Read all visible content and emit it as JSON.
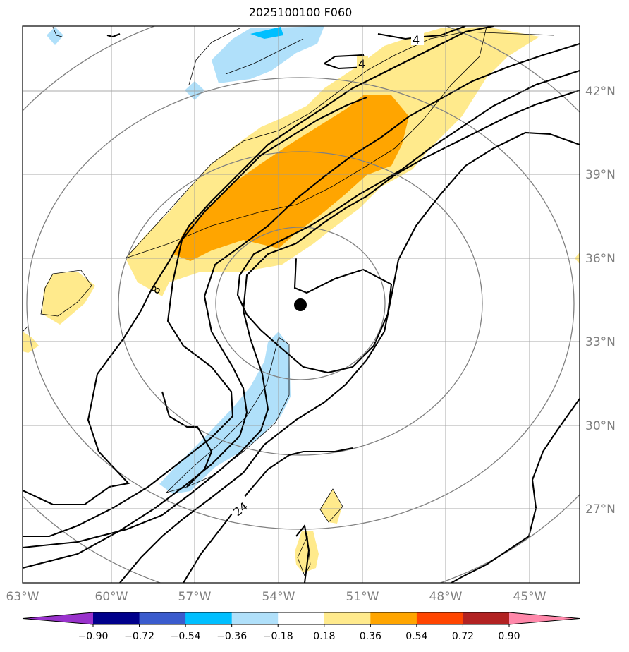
{
  "title": "2025100100 F060",
  "map": {
    "lon_ticks": [
      "63°W",
      "60°W",
      "57°W",
      "54°W",
      "51°W",
      "48°W",
      "45°W"
    ],
    "lat_ticks": [
      "42°N",
      "39°N",
      "36°N",
      "33°N",
      "30°N",
      "27°N"
    ],
    "contour_labels": [
      "4",
      "4",
      "8",
      "24"
    ],
    "center_marker": "storm-center"
  },
  "colorbar": {
    "labels": [
      "−0.90",
      "−0.72",
      "−0.54",
      "−0.36",
      "−0.18",
      "0.18",
      "0.36",
      "0.54",
      "0.72",
      "0.90"
    ],
    "colors": [
      "#9932CC",
      "#00008B",
      "#3A5BCD",
      "#00BFFF",
      "#B0E0FA",
      "#FFFFFF",
      "#FFEA8C",
      "#FFA500",
      "#FF4500",
      "#B22222",
      "#FF88AA"
    ],
    "extend": "both"
  }
}
